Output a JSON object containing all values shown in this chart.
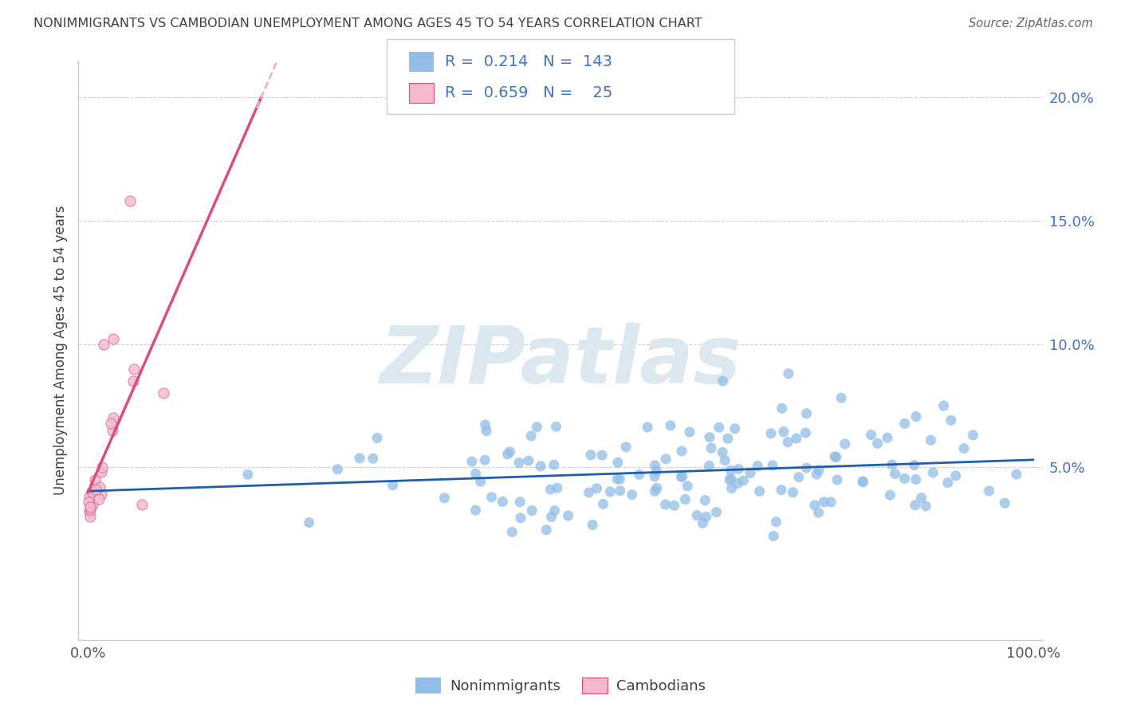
{
  "title": "NONIMMIGRANTS VS CAMBODIAN UNEMPLOYMENT AMONG AGES 45 TO 54 YEARS CORRELATION CHART",
  "source": "Source: ZipAtlas.com",
  "ylabel": "Unemployment Among Ages 45 to 54 years",
  "nonimmigrant_color": "#92bde8",
  "cambodian_color": "#f5b8cc",
  "nonimmigrant_line_color": "#1e5fa8",
  "cambodian_line_color": "#d94f7a",
  "cambodian_dash_color": "#e8b0c0",
  "R_nonimmigrant": "0.214",
  "N_nonimmigrant": "143",
  "R_cambodian": "0.659",
  "N_cambodian": "25",
  "tick_color": "#4472c4",
  "title_color": "#404040",
  "source_color": "#666666",
  "grid_color": "#d0d0d0",
  "axis_color": "#cccccc",
  "background_color": "#ffffff",
  "watermark_text": "ZIPatlas",
  "watermark_color": "#dce8f0",
  "legend_border_color": "#cccccc",
  "ylabel_color": "#404040",
  "xlabel_0": "0.0%",
  "xlabel_100": "100.0%",
  "ytick_labels": [
    "",
    "5.0%",
    "10.0%",
    "15.0%",
    "20.0%"
  ],
  "ytick_vals": [
    0,
    5,
    10,
    15,
    20
  ],
  "legend_bottom_labels": [
    "Nonimmigrants",
    "Cambodians"
  ]
}
